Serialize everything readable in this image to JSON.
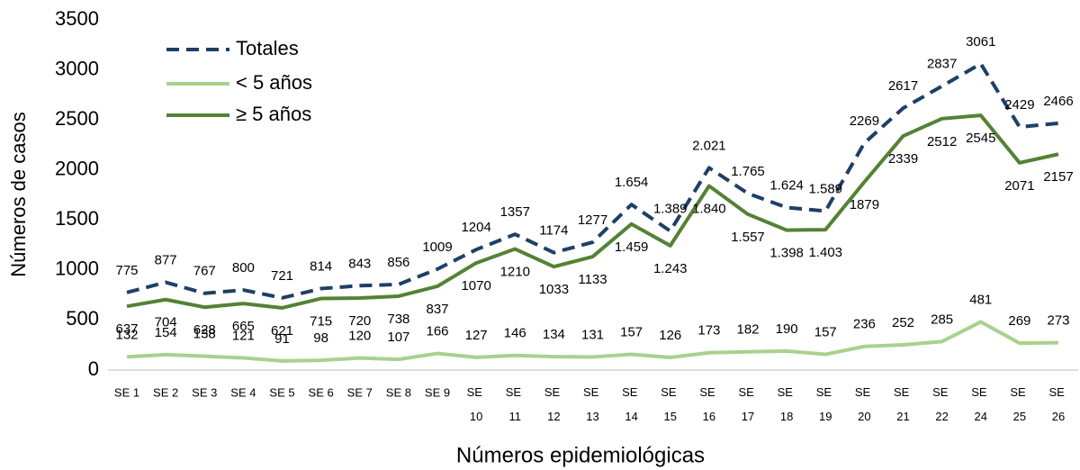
{
  "chart_data": {
    "type": "line",
    "x_label": "Números epidemiológicas",
    "y_label": "Números de casos",
    "categories": [
      "SE 1",
      "SE 2",
      "SE 3",
      "SE 4",
      "SE 5",
      "SE 6",
      "SE 7",
      "SE 8",
      "SE 9",
      "SE 10",
      "SE 11",
      "SE 12",
      "SE 13",
      "SE 14",
      "SE 15",
      "SE 16",
      "SE 17",
      "SE 18",
      "SE 19",
      "SE 20",
      "SE 21",
      "SE 22",
      "SE 24",
      "SE 25",
      "SE 26"
    ],
    "series": [
      {
        "name": "Totales",
        "color": "#1f3f66",
        "dashed": true,
        "values": [
          775,
          877,
          767,
          800,
          721,
          814,
          843,
          856,
          1009,
          1204,
          1357,
          1174,
          1277,
          1654,
          1389,
          2021,
          1765,
          1624,
          1589,
          2269,
          2617,
          2837,
          3061,
          2429,
          2466
        ],
        "value_labels": [
          "775",
          "877",
          "767",
          "800",
          "721",
          "814",
          "843",
          "856",
          "1009",
          "1204",
          "1357",
          "1174",
          "1277",
          "1.654",
          "1.389",
          "2.021",
          "1.765",
          "1.624",
          "1.589",
          "2269",
          "2617",
          "2837",
          "3061",
          "2429",
          "2466"
        ]
      },
      {
        "name": "< 5 años",
        "color": "#a9d18e",
        "dashed": false,
        "values": [
          132,
          154,
          138,
          121,
          91,
          98,
          120,
          107,
          166,
          127,
          146,
          134,
          131,
          157,
          126,
          173,
          182,
          190,
          157,
          236,
          252,
          285,
          481,
          269,
          273
        ]
      },
      {
        "name": "≥ 5 años",
        "color": "#548235",
        "dashed": false,
        "values": [
          637,
          704,
          628,
          665,
          621,
          715,
          720,
          738,
          837,
          1070,
          1210,
          1033,
          1133,
          1459,
          1243,
          1840,
          1557,
          1398,
          1403,
          1879,
          2339,
          2512,
          2545,
          2071,
          2157
        ],
        "value_labels": [
          "637",
          "704",
          "628",
          "665",
          "621",
          "715",
          "720",
          "738",
          "837",
          "1070",
          "1210",
          "1033",
          "1133",
          "1.459",
          "1.243",
          "1.840",
          "1.557",
          "1.398",
          "1.403",
          "1879",
          "2339",
          "2512",
          "2545",
          "2071",
          "2157"
        ]
      }
    ],
    "ylim": [
      0,
      3500
    ],
    "yticks": [
      0,
      500,
      1000,
      1500,
      2000,
      2500,
      3000,
      3500
    ],
    "grid": false,
    "legend": "top-left"
  }
}
